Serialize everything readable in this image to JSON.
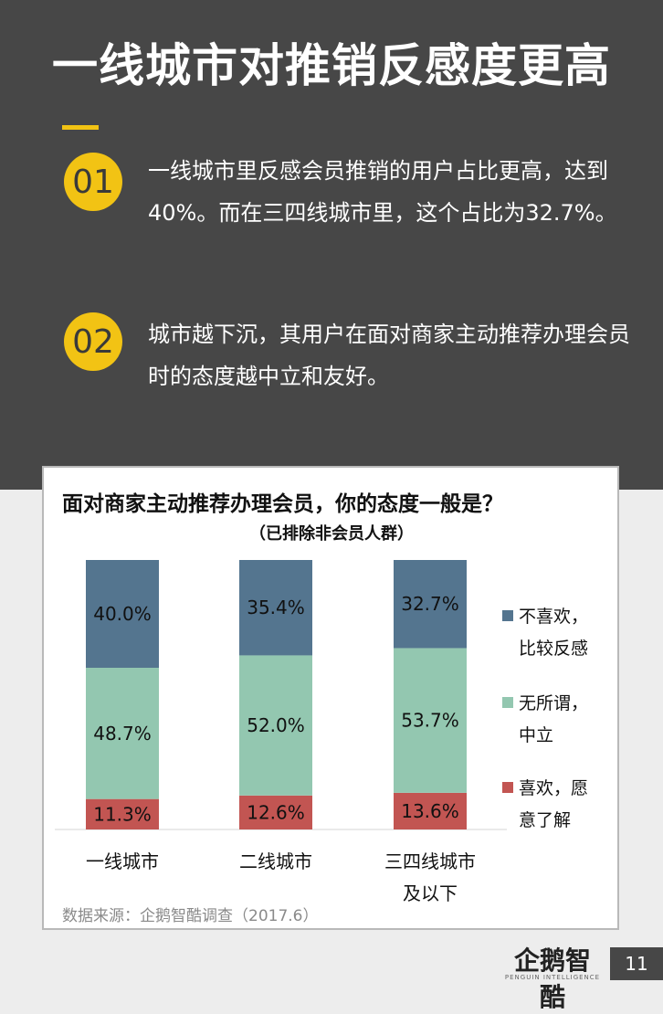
{
  "headline": "一线城市对推销反感度更高",
  "points": [
    {
      "num": "01",
      "text": "一线城市里反感会员推销的用户占比更高，达到40%。而在三四线城市里，这个占比为32.7%。"
    },
    {
      "num": "02",
      "text": "城市越下沉，其用户在面对商家主动推荐办理会员时的态度越中立和友好。"
    }
  ],
  "colors": {
    "dislike": "#54758f",
    "neutral": "#93c7b0",
    "like": "#c25552",
    "accent": "#f2c314",
    "dark": "#474747"
  },
  "chart_data": {
    "type": "bar",
    "stacked": true,
    "title": "面对商家主动推荐办理会员，你的态度一般是？",
    "subtitle": "（已排除非会员人群）",
    "categories": [
      "一线城市",
      "二线城市",
      "三四线城市及以下"
    ],
    "category_lines": [
      [
        "一线城市"
      ],
      [
        "二线城市"
      ],
      [
        "三四线城市",
        "及以下"
      ]
    ],
    "series": [
      {
        "name": "喜欢，愿意了解",
        "legend_lines": [
          "喜欢，愿",
          "意了解"
        ],
        "key": "like",
        "values": [
          11.3,
          12.6,
          13.6
        ],
        "labels": [
          "11.3%",
          "12.6%",
          "13.6%"
        ]
      },
      {
        "name": "无所谓，中立",
        "legend_lines": [
          "无所谓，",
          "中立"
        ],
        "key": "neutral",
        "values": [
          48.7,
          52.0,
          53.7
        ],
        "labels": [
          "48.7%",
          "52.0%",
          "53.7%"
        ]
      },
      {
        "name": "不喜欢，比较反感",
        "legend_lines": [
          "不喜欢，",
          "比较反感"
        ],
        "key": "dislike",
        "values": [
          40.0,
          35.4,
          32.7
        ],
        "labels": [
          "40.0%",
          "35.4%",
          "32.7%"
        ]
      }
    ],
    "ylim": [
      0,
      100
    ],
    "legend": "right"
  },
  "source": "数据来源：企鹅智酷调查（2017.6）",
  "logo": {
    "text": "企鹅智酷",
    "sub": "PENGUIN INTELLIGENCE"
  },
  "page_number": "11"
}
